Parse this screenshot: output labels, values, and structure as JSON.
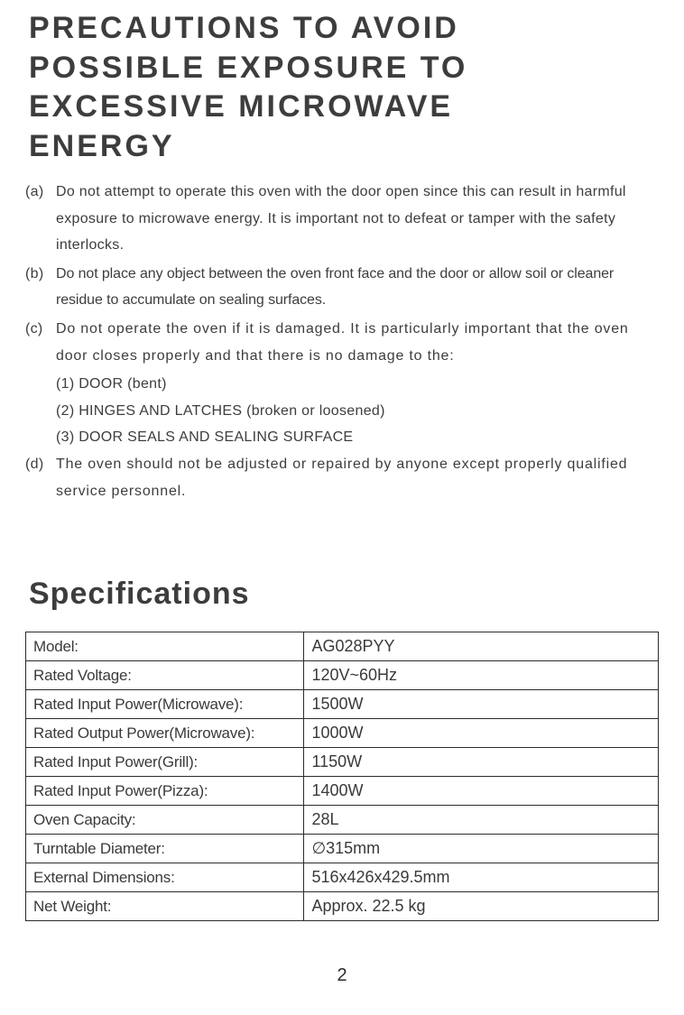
{
  "title": {
    "line1": "PRECAUTIONS TO AVOID",
    "line2": "POSSIBLE EXPOSURE TO",
    "line3": "EXCESSIVE MICROWAVE",
    "line4": "ENERGY"
  },
  "precautions": {
    "a": {
      "marker": "(a)",
      "text": "Do not attempt to operate this oven with the door open since this can result in harmful exposure to microwave energy. It is important not to defeat or tamper with the safety interlocks."
    },
    "b": {
      "marker": "(b)",
      "text": "Do not place any object between the oven front face and the door or allow soil or cleaner residue to accumulate on sealing surfaces."
    },
    "c": {
      "marker": "(c)",
      "text": "Do not operate the oven if it is damaged. It is particularly important that the oven door closes properly and that there is no damage to the:"
    },
    "c_sub1": "(1) DOOR (bent)",
    "c_sub2": "(2) HINGES AND LATCHES (broken or loosened)",
    "c_sub3": "(3) DOOR SEALS AND SEALING SURFACE",
    "d": {
      "marker": "(d)",
      "text": "The oven should not be adjusted or repaired by anyone except properly qualified service personnel."
    }
  },
  "spec_heading": "Specifications",
  "specs": {
    "rows": [
      {
        "label": "Model:",
        "value": "AG028PYY"
      },
      {
        "label": "Rated Voltage:",
        "value": "120V~60Hz"
      },
      {
        "label": "Rated Input Power(Microwave):",
        "value": "1500W"
      },
      {
        "label": "Rated Output Power(Microwave):",
        "value": "1000W"
      },
      {
        "label": "Rated Input Power(Grill):",
        "value": "1150W"
      },
      {
        "label": "Rated Input Power(Pizza):",
        "value": "1400W"
      },
      {
        "label": "Oven Capacity:",
        "value": "28L"
      },
      {
        "label": "Turntable Diameter:",
        "value": "∅315mm"
      },
      {
        "label": "External Dimensions:",
        "value": "516x426x429.5mm"
      },
      {
        "label": "Net Weight:",
        "value": "Approx. 22.5 kg"
      }
    ]
  },
  "page_number": "2",
  "colors": {
    "text": "#3d3d3d",
    "border": "#2b2b2b",
    "background": "#ffffff"
  }
}
